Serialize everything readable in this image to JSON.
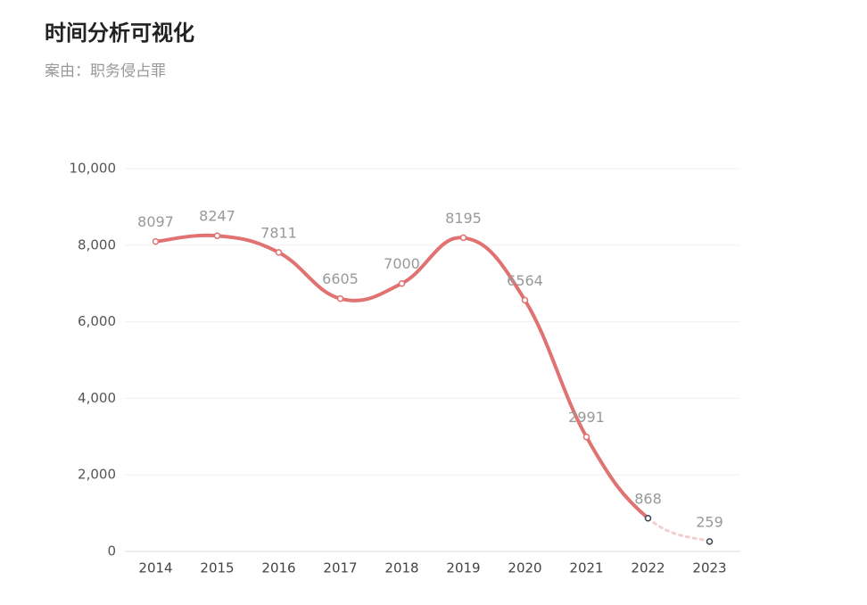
{
  "chart_data": {
    "type": "line",
    "title": "时间分析可视化",
    "subtitle": "案由：职务侵占罪",
    "categories": [
      "2014",
      "2015",
      "2016",
      "2017",
      "2018",
      "2019",
      "2020",
      "2021",
      "2022",
      "2023"
    ],
    "values": [
      8097,
      8247,
      7811,
      6605,
      7000,
      8195,
      6564,
      2991,
      868,
      259
    ],
    "color": "#e07272",
    "segment_styles": [
      "solid",
      "solid",
      "solid",
      "solid",
      "solid",
      "solid",
      "solid",
      "solid",
      "dotted"
    ],
    "marker_edge_colors": [
      "#e07272",
      "#e07272",
      "#e07272",
      "#e07272",
      "#e07272",
      "#e07272",
      "#e07272",
      "#e07272",
      "#3a3f4f",
      "#3a3f4f"
    ],
    "ylim": [
      0,
      10000
    ],
    "yticks": [
      0,
      {
        "value": 2000,
        "label": "2,000"
      },
      {
        "value": 4000,
        "label": "4,000"
      },
      {
        "value": 6000,
        "label": "6,000"
      },
      {
        "value": 8000,
        "label": "8,000"
      },
      {
        "value": 10000,
        "label": "10,000"
      }
    ],
    "grid": true,
    "smooth": true
  }
}
